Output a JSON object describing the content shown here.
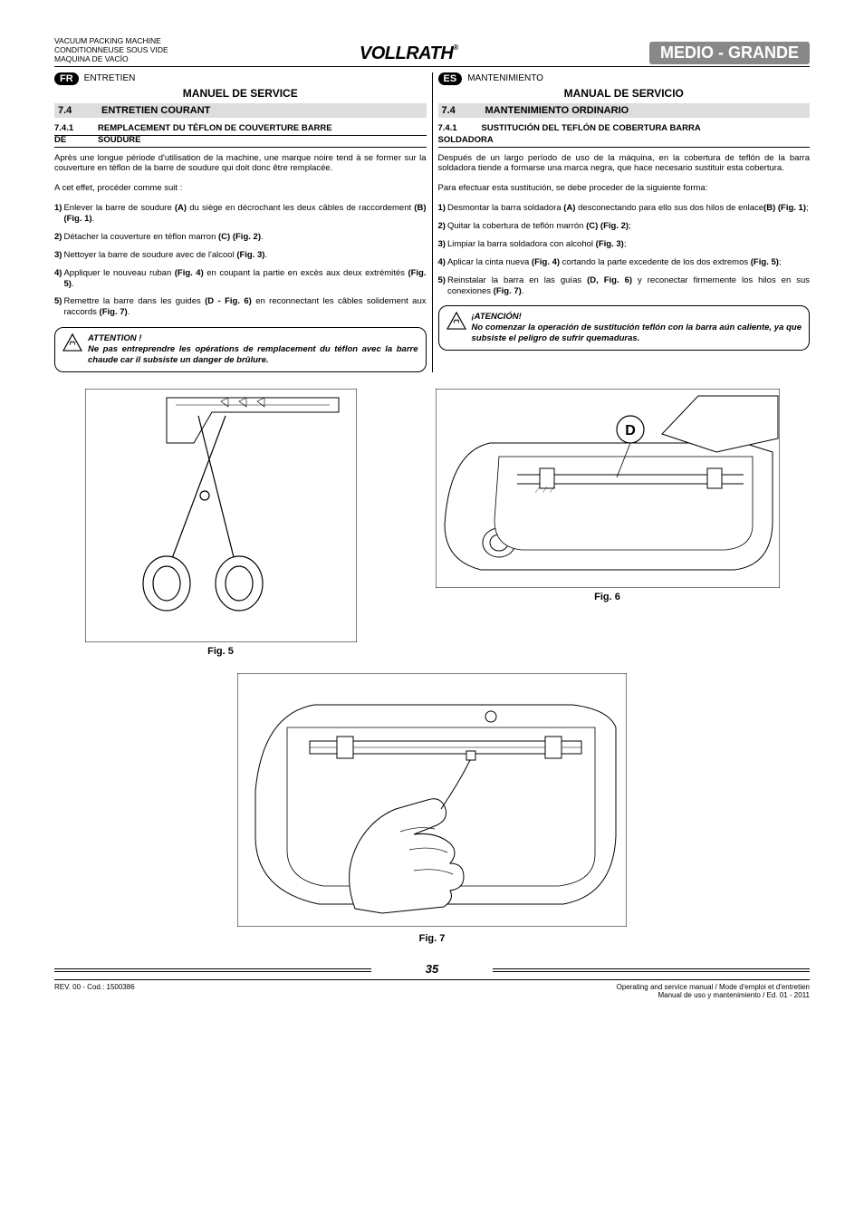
{
  "header": {
    "left_lines": [
      "VACUUM PACKING MACHINE",
      "CONDITIONNEUSE SOUS VIDE",
      "MAQUINA DE VACÍO"
    ],
    "brand": "VOLLRATH",
    "model": "MEDIO - GRANDE"
  },
  "fr": {
    "badge": "FR",
    "lang_label": "ENTRETIEN",
    "manual_title": "MANUEL DE SERVICE",
    "section_num": "7.4",
    "section_title": "ENTRETIEN COURANT",
    "sub_num": "7.4.1",
    "sub_line1": "REMPLACEMENT DU TÉFLON DE COUVERTURE BARRE",
    "sub_prefix": "DE",
    "sub_line2": "SOUDURE",
    "intro": "Après une longue période d'utilisation de la machine, une marque noire tend à se former sur la couverture en téflon de la barre de soudure qui doit donc être remplacée.",
    "lead": "A cet effet, procéder comme suit :",
    "steps": [
      "Enlever la barre de soudure <b>(A)</b> du siège en décrochant les deux câbles de raccordement <b>(B) (Fig. 1)</b>.",
      "Détacher la couverture en téflon marron <b>(C) (Fig. 2)</b>.",
      "Nettoyer la barre de soudure avec de l'alcool <b>(Fig. 3)</b>.",
      "Appliquer le nouveau ruban <b>(Fig. 4)</b> en coupant la partie en excès aux deux extrémités <b>(Fig. 5)</b>.",
      "Remettre la barre dans les guides <b>(D - Fig. 6)</b> en reconnectant les câbles solidement aux raccords <b>(Fig. 7)</b>."
    ],
    "warn_title": "ATTENTION !",
    "warn_body": "Ne pas entreprendre les opérations de remplacement du téflon avec la barre chaude car il subsiste un danger de brûlure."
  },
  "es": {
    "badge": "ES",
    "lang_label": "MANTENIMIENTO",
    "manual_title": "MANUAL DE SERVICIO",
    "section_num": "7.4",
    "section_title": "MANTENIMIENTO ORDINARIO",
    "sub_num": "7.4.1",
    "sub_line1": "SUSTITUCIÓN DEL TEFLÓN DE COBERTURA BARRA",
    "sub_line2": "SOLDADORA",
    "intro": "Después de un largo período de uso de la máquina, en la cobertura de teflón de la barra soldadora tiende a formarse una marca negra, que hace necesario sustituir esta cobertura.",
    "lead": "Para efectuar esta sustitución, se debe proceder de la siguiente forma:",
    "steps": [
      "Desmontar la barra soldadora <b>(A)</b> desconectando para ello sus dos hilos de enlace<b>(B) (Fig. 1)</b>;",
      "Quitar la cobertura de teflón marrón <b>(C) (Fig. 2)</b>;",
      "Limpiar la barra soldadora con alcohol <b>(Fig. 3)</b>;",
      "Aplicar la cinta nueva <b>(Fig. 4)</b> cortando la parte excedente de los dos extremos <b>(Fig. 5)</b>;",
      "Reinstalar la barra en las guías <b>(D, Fig. 6)</b> y reconectar firmemente los hilos en sus conexiones <b>(Fig. 7)</b>."
    ],
    "warn_title": "¡ATENCIÓN!",
    "warn_body": "No comenzar la operación de sustitución teflón con la barra aún caliente, ya que subsiste el peligro de sufrir quemaduras."
  },
  "figs": {
    "f5": "Fig. 5",
    "f6": "Fig. 6",
    "f6_label": "D",
    "f7": "Fig. 7"
  },
  "footer": {
    "left": "REV. 00 - Cod.: 1500386",
    "right1": "Operating and service manual / Mode d'emploi et d'entretien",
    "right2": "Manual de uso y mantenimiento / Ed. 01 - 2011",
    "page": "35"
  },
  "style": {
    "gray_bar": "#dddddd",
    "badge_bg": "#000000",
    "model_bg": "#888888"
  }
}
